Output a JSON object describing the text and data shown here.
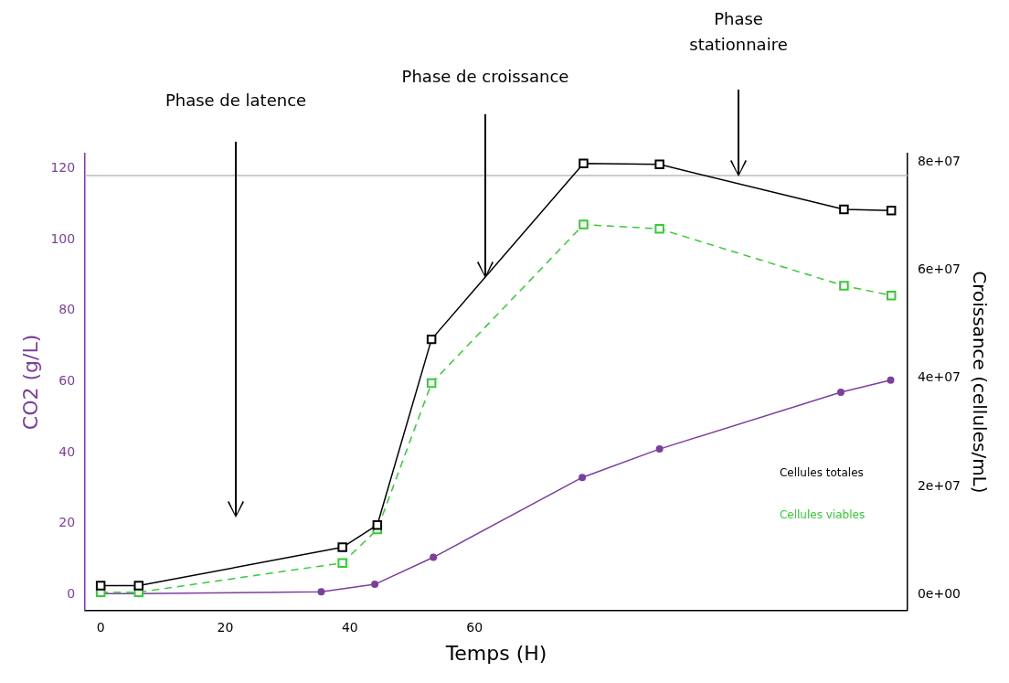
{
  "chart_data": {
    "type": "line",
    "xlabel": "Temps (H)",
    "ylabel": "CO2 (g/L)",
    "y2label": "Croissance (cellules/mL)",
    "xlim": [
      -2.5,
      129.5
    ],
    "xticks": [
      0,
      20,
      40,
      60
    ],
    "ylim": [
      -4.5,
      124.2
    ],
    "yticks": [
      0,
      20,
      40,
      60,
      80,
      100,
      120
    ],
    "y2lim": [
      -2900000,
      81500000
    ],
    "y2ticks": [
      {
        "value": 0,
        "label": "0e+00"
      },
      {
        "value": 20000000,
        "label": "2e+07"
      },
      {
        "value": 40000000,
        "label": "4e+07"
      },
      {
        "value": 60000000,
        "label": "6e+07"
      },
      {
        "value": 80000000,
        "label": "8e+07"
      }
    ],
    "series": [
      {
        "name": "Cellules totales",
        "color": "#000000",
        "axis": "y2",
        "marker": "square",
        "line_style": "solid",
        "x": [
          0,
          6.1,
          38.8,
          44.4,
          53.1,
          77.5,
          89.7,
          119.3,
          126.9
        ],
        "values": [
          1700000,
          1700000,
          8800000,
          12900000,
          47200000,
          79700000,
          79500000,
          71200000,
          71000000
        ]
      },
      {
        "name": "Cellules viables",
        "color": "#33cc33",
        "axis": "y2",
        "marker": "square",
        "line_style": "dashed",
        "x": [
          0,
          6.1,
          38.8,
          44.4,
          53.1,
          77.5,
          89.7,
          119.3,
          126.9
        ],
        "values": [
          500000,
          500000,
          5900000,
          12100000,
          39100000,
          68400000,
          67600000,
          57100000,
          55300000
        ]
      },
      {
        "color": "#7b3f9e",
        "axis": "y",
        "marker": "circle",
        "line_style": "solid",
        "x": [
          0,
          6.1,
          35.4,
          44.0,
          53.4,
          77.3,
          89.7,
          118.8,
          126.8
        ],
        "values": [
          0.3,
          0.3,
          0.8,
          2.9,
          10.5,
          33,
          41,
          57,
          60.4
        ]
      }
    ],
    "ref_lines": [
      {
        "axis": "y",
        "value": 118,
        "color": "#bbbbbb"
      }
    ],
    "annotations": [
      "Phase de latence",
      "Phase de croissance",
      "Phase stationnaire"
    ],
    "legend": "bottom right",
    "grid": false
  }
}
